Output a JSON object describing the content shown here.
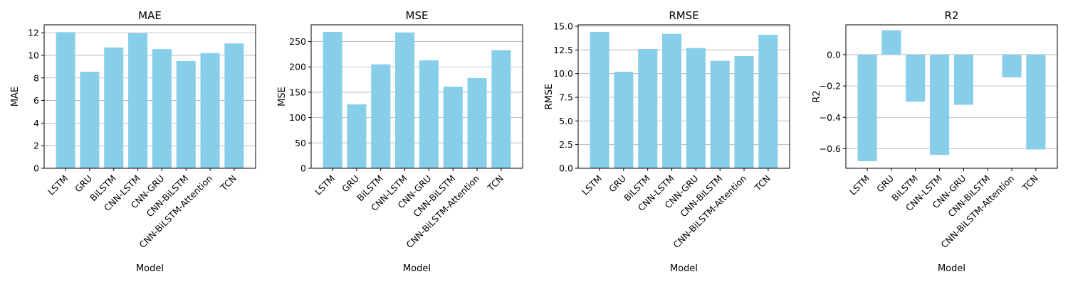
{
  "chart_data": [
    {
      "type": "bar",
      "title": "MAE",
      "xlabel": "Model",
      "ylabel": "MAE",
      "categories": [
        "LSTM",
        "GRU",
        "BiLSTM",
        "CNN-LSTM",
        "CNN-GRU",
        "CNN-BiLSTM",
        "CNN-BiLSTM-Attention",
        "TCN"
      ],
      "values": [
        12.05,
        8.55,
        10.7,
        11.95,
        10.55,
        9.5,
        10.2,
        11.05
      ],
      "ylim": [
        0,
        12.7
      ],
      "yticks": [
        0,
        2,
        4,
        6,
        8,
        10,
        12
      ],
      "ytick_labels": [
        "0",
        "2",
        "4",
        "6",
        "8",
        "10",
        "12"
      ],
      "grid": "y"
    },
    {
      "type": "bar",
      "title": "MSE",
      "xlabel": "Model",
      "ylabel": "MSE",
      "categories": [
        "LSTM",
        "GRU",
        "BiLSTM",
        "CNN-LSTM",
        "CNN-GRU",
        "CNN-BiLSTM",
        "CNN-BiLSTM-Attention",
        "TCN"
      ],
      "values": [
        269,
        126,
        205,
        268,
        213,
        161,
        178,
        233
      ],
      "ylim": [
        0,
        283
      ],
      "yticks": [
        0,
        50,
        100,
        150,
        200,
        250
      ],
      "ytick_labels": [
        "0",
        "50",
        "100",
        "150",
        "200",
        "250"
      ],
      "grid": "y"
    },
    {
      "type": "bar",
      "title": "RMSE",
      "xlabel": "Model",
      "ylabel": "RMSE",
      "categories": [
        "LSTM",
        "GRU",
        "BiLSTM",
        "CNN-LSTM",
        "CNN-GRU",
        "CNN-BiLSTM",
        "CNN-BiLSTM-Attention",
        "TCN"
      ],
      "values": [
        14.4,
        10.2,
        12.6,
        14.2,
        12.7,
        11.35,
        11.85,
        14.1
      ],
      "ylim": [
        0,
        15.15
      ],
      "yticks": [
        0,
        2.5,
        5,
        7.5,
        10,
        12.5,
        15
      ],
      "ytick_labels": [
        "0.0",
        "2.5",
        "5.0",
        "7.5",
        "10.0",
        "12.5",
        "15.0"
      ],
      "grid": "y"
    },
    {
      "type": "bar",
      "title": "R2",
      "xlabel": "Model",
      "ylabel": "R2",
      "categories": [
        "LSTM",
        "GRU",
        "BiLSTM",
        "CNN-LSTM",
        "CNN-GRU",
        "CNN-BiLSTM",
        "CNN-BiLSTM-Attention",
        "TCN"
      ],
      "values": [
        -0.68,
        0.155,
        -0.3,
        -0.64,
        -0.32,
        0.0,
        -0.145,
        -0.605
      ],
      "ylim": [
        -0.725,
        0.19
      ],
      "yticks": [
        -0.6,
        -0.4,
        -0.2,
        0.0
      ],
      "ytick_labels": [
        "−0.6",
        "−0.4",
        "−0.2",
        "0.0"
      ],
      "grid": "y"
    }
  ],
  "colors": {
    "bar": "#87ceeb",
    "grid": "#b0b0b0",
    "axes": "#000000"
  }
}
